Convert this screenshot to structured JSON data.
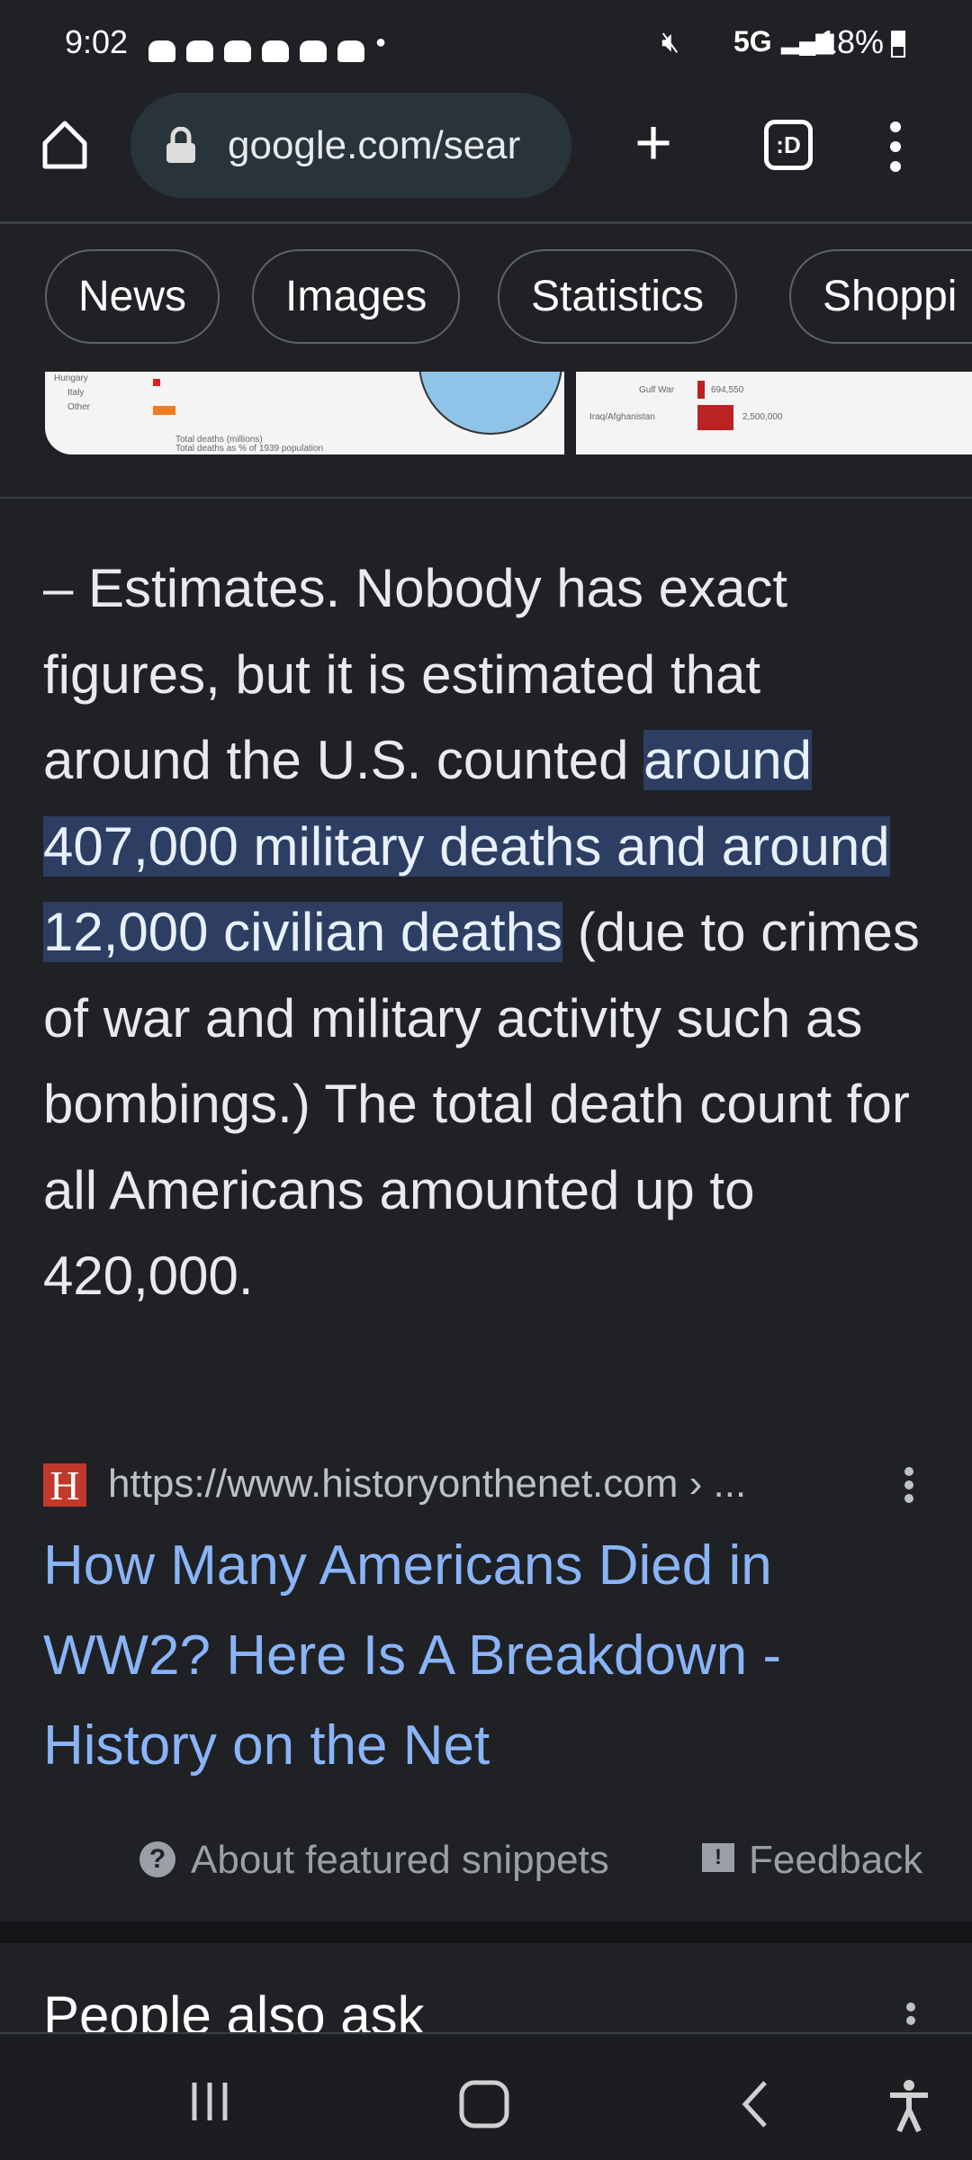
{
  "status_bar": {
    "time": "9:02",
    "network": "5G",
    "battery": "18%",
    "notification_count": 6
  },
  "browser": {
    "url": "google.com/sear",
    "tab_icon_label": ":D"
  },
  "chips": [
    "News",
    "Images",
    "Statistics",
    "Shoppi"
  ],
  "snippet": {
    "before": "– Estimates. Nobody has exact figures, but it is estimated that around the U.S. counted ",
    "highlight": "around 407,000 military deaths and around 12,000 civilian deaths",
    "after": " (due to crimes of war and military activity such as bombings.) The total death count for all Americans amounted up to 420,000."
  },
  "images": {
    "left_labels": [
      "Hungary",
      "Italy",
      "Other",
      "Total deaths (millions)",
      "Total deaths as % of 1939 population"
    ],
    "right_labels": [
      "Gulf War",
      "694,550",
      "Iraq/Afghanistan",
      "2,500,000"
    ]
  },
  "source": {
    "favicon": "H",
    "url": "https://www.historyonthenet.com › ...",
    "title": "How Many Americans Died in WW2? Here Is A Breakdown - History on the Net"
  },
  "footer": {
    "about": "About featured snippets",
    "feedback": "Feedback"
  },
  "people_also_ask": "People also ask",
  "colors": {
    "background": "#1f2125",
    "link": "#8ab4f8",
    "highlight": "#2d3e62",
    "favicon": "#c0392b"
  }
}
